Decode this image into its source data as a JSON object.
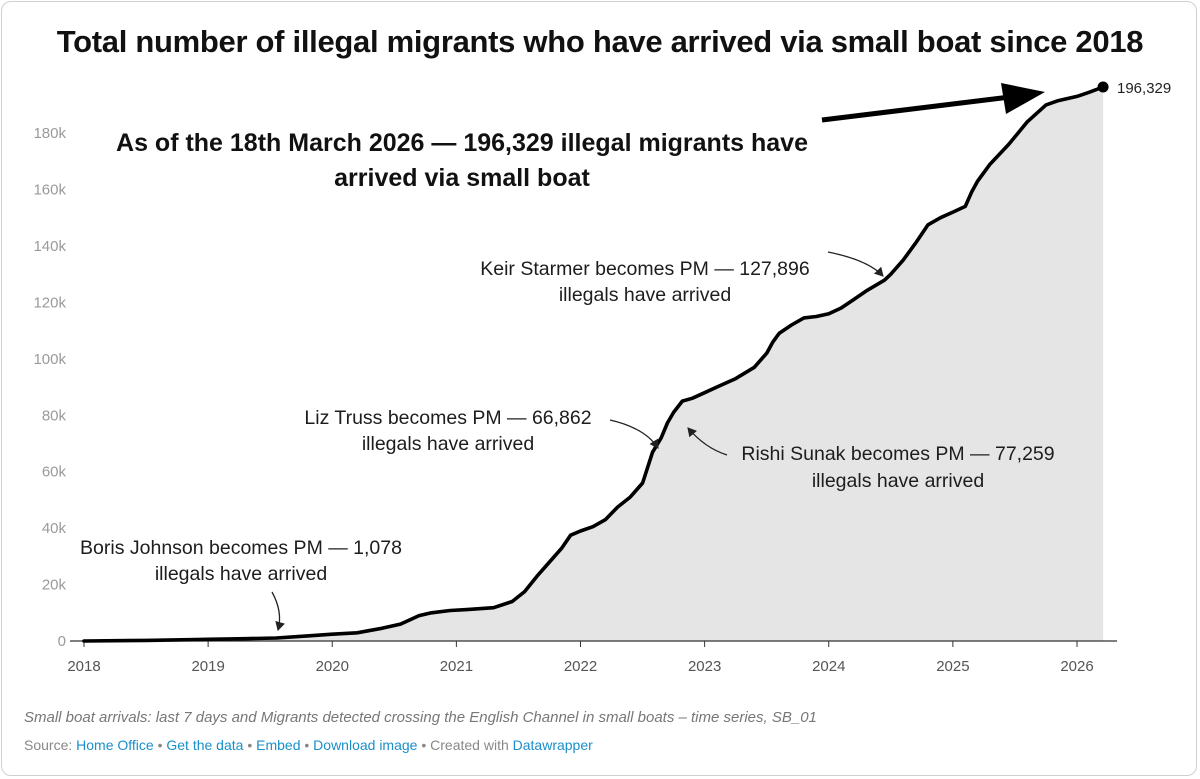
{
  "title": "Total number of illegal migrants who have arrived via small boat since 2018",
  "headline": {
    "line1": "As of the 18th March 2026 — 196,329 illegal migrants have",
    "line2": "arrived via small boat"
  },
  "end_label": "196,329",
  "annotations": {
    "boris": {
      "line1": "Boris Johnson becomes PM — 1,078",
      "line2": "illegals have arrived"
    },
    "truss": {
      "line1": "Liz Truss becomes PM — 66,862",
      "line2": "illegals have arrived"
    },
    "sunak": {
      "line1": "Rishi Sunak becomes PM — 77,259",
      "line2": "illegals have arrived"
    },
    "starmer": {
      "line1": "Keir Starmer becomes PM — 127,896",
      "line2": "illegals have arrived"
    }
  },
  "notes": "Small boat arrivals: last 7 days and Migrants detected crossing the English Channel in small boats – time series, SB_01",
  "footer": {
    "source_prefix": "Source:",
    "source_name": "Home Office",
    "sep": "•",
    "get_data": "Get the data",
    "embed": "Embed",
    "download": "Download image",
    "created_with": "Created with",
    "datawrapper": "Datawrapper"
  },
  "colors": {
    "line": "#000000",
    "area": "#e5e5e5",
    "link": "#1a8fc9"
  },
  "chart_data": {
    "type": "area",
    "title": "Total number of illegal migrants who have arrived via small boat since 2018",
    "xlabel": "",
    "ylabel": "",
    "xlim": [
      2018,
      2026.25
    ],
    "ylim": [
      0,
      196329
    ],
    "x_ticks": [
      "2018",
      "2019",
      "2020",
      "2021",
      "2022",
      "2023",
      "2024",
      "2025",
      "2026"
    ],
    "y_ticks": [
      "0",
      "20k",
      "40k",
      "60k",
      "80k",
      "100k",
      "120k",
      "140k",
      "160k",
      "180k"
    ],
    "y_tick_values": [
      0,
      20000,
      40000,
      60000,
      80000,
      100000,
      120000,
      140000,
      160000,
      180000
    ],
    "grid": false,
    "series": [
      {
        "x": [
          2018.0,
          2018.5,
          2018.9,
          2019.0,
          2019.3,
          2019.55,
          2019.8,
          2020.0,
          2020.2,
          2020.4,
          2020.55,
          2020.7,
          2020.8,
          2020.95,
          2021.1,
          2021.3,
          2021.45,
          2021.55,
          2021.65,
          2021.75,
          2021.85,
          2021.92,
          2022.0,
          2022.1,
          2022.2,
          2022.3,
          2022.4,
          2022.5,
          2022.58,
          2022.65,
          2022.7,
          2022.75,
          2022.82,
          2022.9,
          2023.0,
          2023.1,
          2023.25,
          2023.4,
          2023.5,
          2023.55,
          2023.6,
          2023.7,
          2023.8,
          2023.9,
          2024.0,
          2024.1,
          2024.2,
          2024.3,
          2024.45,
          2024.5,
          2024.6,
          2024.7,
          2024.8,
          2024.9,
          2025.0,
          2025.1,
          2025.15,
          2025.2,
          2025.3,
          2025.45,
          2025.6,
          2025.75,
          2025.85,
          2026.0,
          2026.1,
          2026.21
        ],
        "y": [
          0,
          200,
          500,
          600,
          800,
          1078,
          1800,
          2400,
          2900,
          4500,
          6000,
          9000,
          10000,
          10800,
          11200,
          11800,
          14000,
          17500,
          23000,
          28000,
          33000,
          37500,
          39000,
          40500,
          43000,
          47500,
          51000,
          56000,
          66862,
          72000,
          77259,
          81000,
          85000,
          86000,
          88000,
          90000,
          93000,
          97000,
          102000,
          106000,
          109000,
          112000,
          114500,
          115000,
          116000,
          118000,
          121000,
          124000,
          127896,
          130000,
          135000,
          141000,
          147500,
          150000,
          152000,
          154000,
          159000,
          163000,
          169000,
          176000,
          184000,
          190000,
          191500,
          193000,
          194500,
          196329
        ]
      }
    ]
  }
}
